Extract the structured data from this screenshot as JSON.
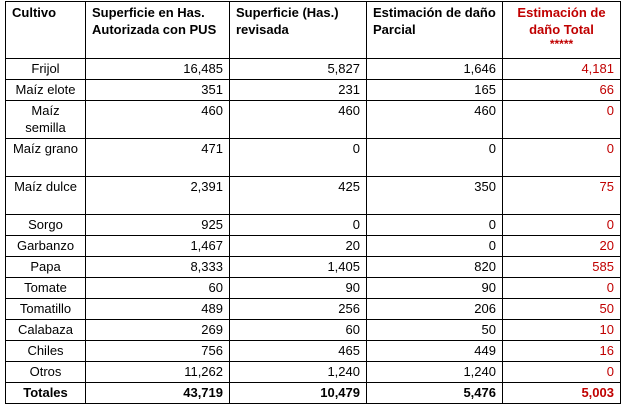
{
  "table": {
    "headers": {
      "cultivo": "Cultivo",
      "superficie_autorizada": "Superficie en Has. Autorizada con PUS",
      "superficie_revisada": "Superficie (Has.) revisada",
      "dano_parcial": "Estimación de daño Parcial",
      "dano_total": "Estimación de daño Total",
      "dano_total_mark": "*****"
    },
    "rows": [
      {
        "cultivo": "Frijol",
        "autorizada": "16,485",
        "revisada": "5,827",
        "parcial": "1,646",
        "total": "4,181"
      },
      {
        "cultivo": "Maíz elote",
        "autorizada": "351",
        "revisada": "231",
        "parcial": "165",
        "total": "66"
      },
      {
        "cultivo": "Maíz semilla",
        "autorizada": "460",
        "revisada": "460",
        "parcial": "460",
        "total": "0"
      },
      {
        "cultivo": "Maíz grano",
        "autorizada": "471",
        "revisada": "0",
        "parcial": "0",
        "total": "0"
      },
      {
        "cultivo": "Maíz dulce",
        "autorizada": "2,391",
        "revisada": "425",
        "parcial": "350",
        "total": "75"
      },
      {
        "cultivo": "Sorgo",
        "autorizada": "925",
        "revisada": "0",
        "parcial": "0",
        "total": "0"
      },
      {
        "cultivo": "Garbanzo",
        "autorizada": "1,467",
        "revisada": "20",
        "parcial": "0",
        "total": "20"
      },
      {
        "cultivo": "Papa",
        "autorizada": "8,333",
        "revisada": "1,405",
        "parcial": "820",
        "total": "585"
      },
      {
        "cultivo": "Tomate",
        "autorizada": "60",
        "revisada": "90",
        "parcial": "90",
        "total": "0"
      },
      {
        "cultivo": "Tomatillo",
        "autorizada": "489",
        "revisada": "256",
        "parcial": "206",
        "total": "50"
      },
      {
        "cultivo": "Calabaza",
        "autorizada": "269",
        "revisada": "60",
        "parcial": "50",
        "total": "10"
      },
      {
        "cultivo": "Chiles",
        "autorizada": "756",
        "revisada": "465",
        "parcial": "449",
        "total": "16"
      },
      {
        "cultivo": "Otros",
        "autorizada": "11,262",
        "revisada": "1,240",
        "parcial": "1,240",
        "total": "0"
      }
    ],
    "totals": {
      "label": "Totales",
      "autorizada": "43,719",
      "revisada": "10,479",
      "parcial": "5,476",
      "total": "5,003"
    }
  },
  "colors": {
    "highlight": "#c00000",
    "border": "#000000"
  }
}
